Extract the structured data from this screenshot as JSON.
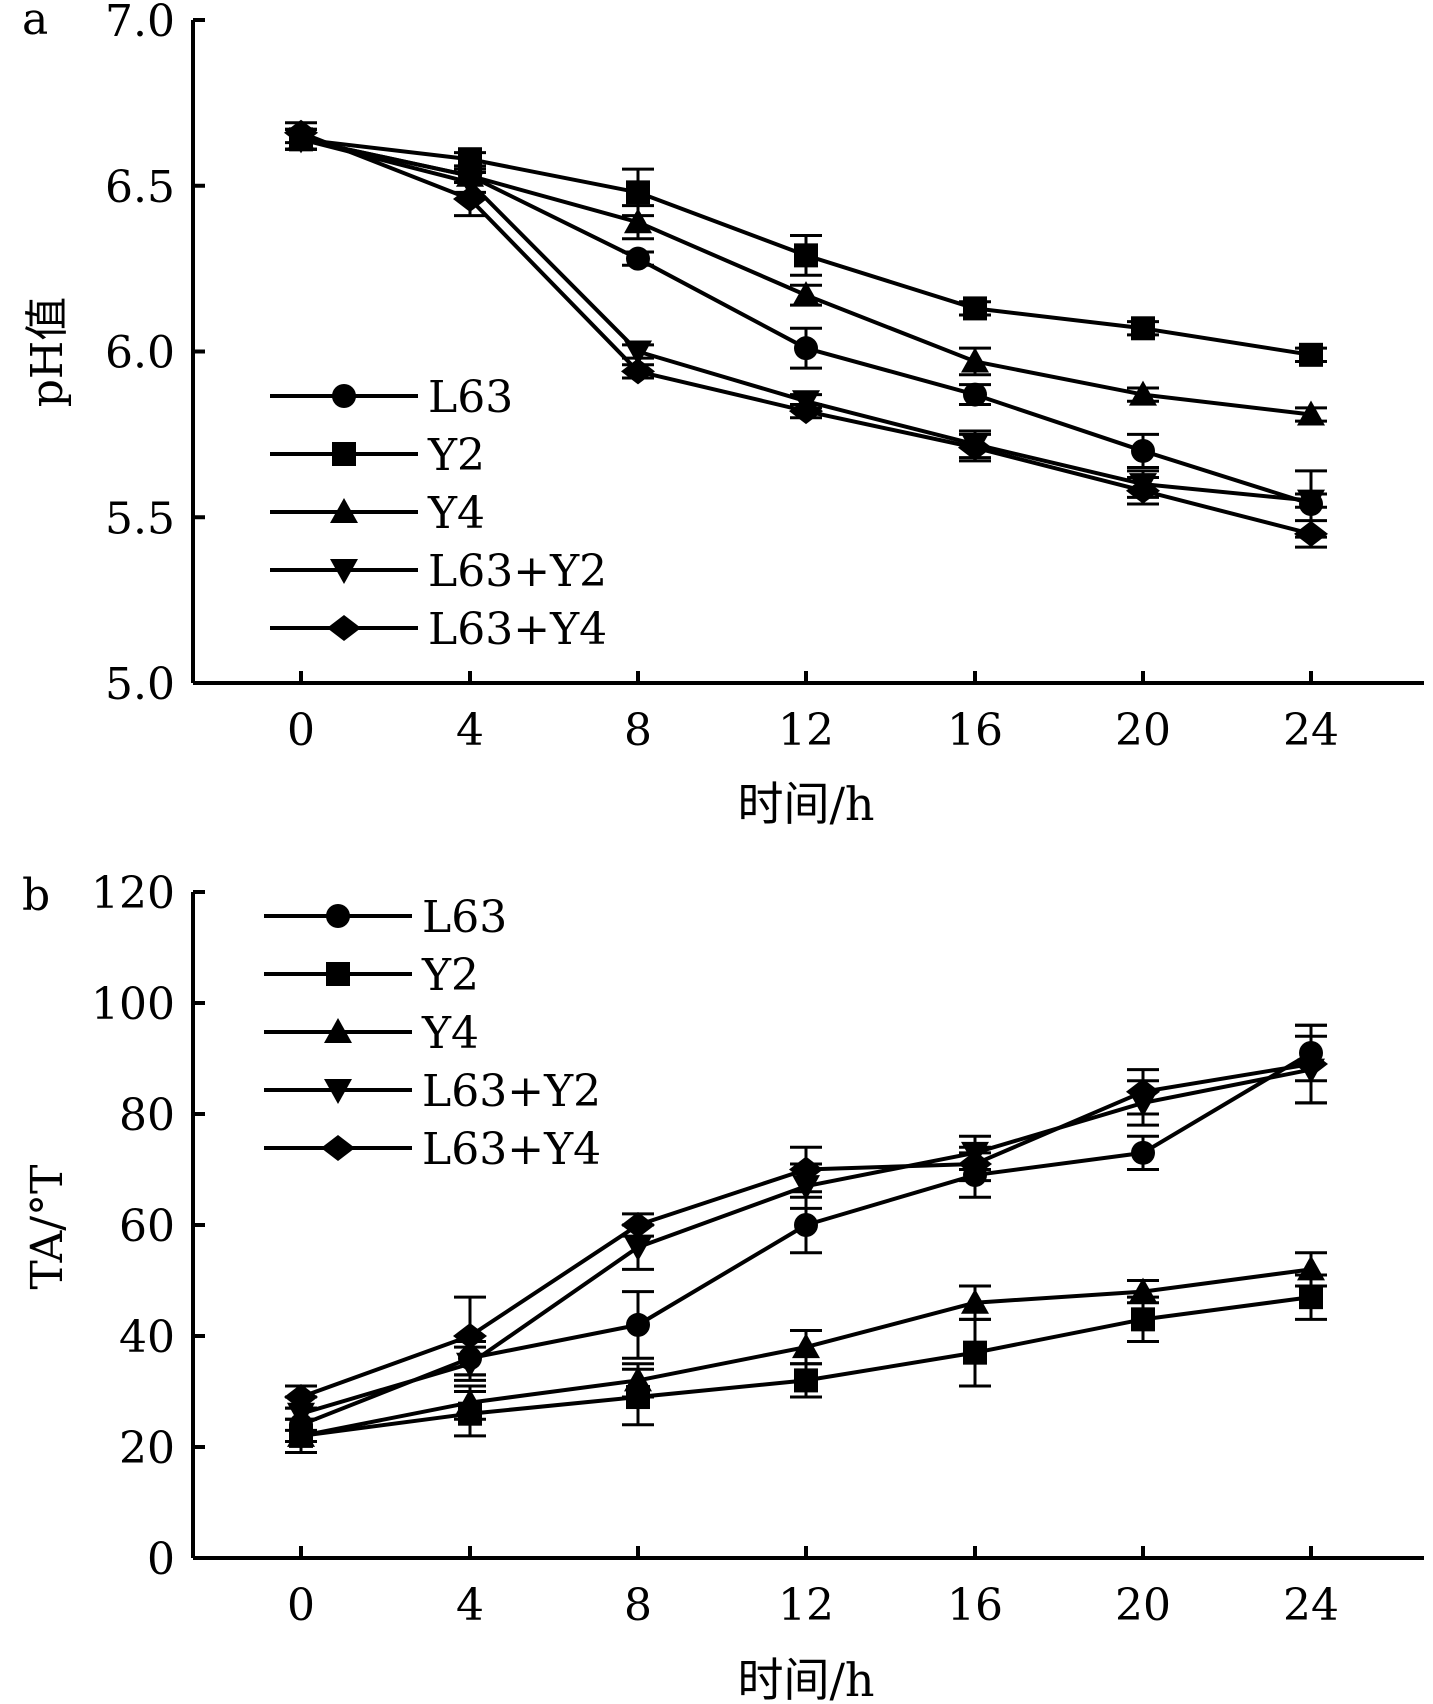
{
  "chart_data": [
    {
      "panel_label": "a",
      "type": "line",
      "xlabel": "时间/h",
      "ylabel": "pH值",
      "x": [
        0,
        4,
        8,
        12,
        16,
        20,
        24
      ],
      "xticks": [
        "0",
        "4",
        "8",
        "12",
        "16",
        "20",
        "24"
      ],
      "yticks": [
        "5.0",
        "5.5",
        "6.0",
        "6.5",
        "7.0"
      ],
      "ylim": [
        5.0,
        7.0
      ],
      "grid": false,
      "legend_position": "middle-left",
      "series": [
        {
          "name": "L63",
          "marker": "circle",
          "values": [
            6.64,
            6.53,
            6.28,
            6.01,
            5.87,
            5.7,
            5.54
          ],
          "errors": [
            0.03,
            0.02,
            0.02,
            0.06,
            0.03,
            0.05,
            0.1
          ]
        },
        {
          "name": "Y2",
          "marker": "square",
          "values": [
            6.64,
            6.58,
            6.48,
            6.29,
            6.13,
            6.07,
            5.99
          ],
          "errors": [
            0.03,
            0.02,
            0.07,
            0.06,
            0.02,
            0.02,
            0.02
          ]
        },
        {
          "name": "Y4",
          "marker": "triangle-up",
          "values": [
            6.64,
            6.53,
            6.39,
            6.17,
            5.97,
            5.87,
            5.81
          ],
          "errors": [
            0.03,
            0.02,
            0.05,
            0.03,
            0.04,
            0.02,
            0.02
          ]
        },
        {
          "name": "L63+Y2",
          "marker": "triangle-down",
          "values": [
            6.64,
            6.51,
            6.0,
            5.85,
            5.72,
            5.6,
            5.55
          ],
          "errors": [
            0.03,
            0.03,
            0.02,
            0.02,
            0.04,
            0.04,
            0.02
          ]
        },
        {
          "name": "L63+Y4",
          "marker": "diamond",
          "values": [
            6.66,
            6.46,
            5.94,
            5.82,
            5.71,
            5.58,
            5.45
          ],
          "errors": [
            0.03,
            0.05,
            0.02,
            0.02,
            0.04,
            0.04,
            0.04
          ]
        }
      ]
    },
    {
      "panel_label": "b",
      "type": "line",
      "xlabel": "时间/h",
      "ylabel": "TA/°T",
      "x": [
        0,
        4,
        8,
        12,
        16,
        20,
        24
      ],
      "xticks": [
        "0",
        "4",
        "8",
        "12",
        "16",
        "20",
        "24"
      ],
      "yticks": [
        "0",
        "20",
        "40",
        "60",
        "80",
        "100",
        "120"
      ],
      "ylim": [
        0,
        120
      ],
      "grid": false,
      "legend_position": "top-left",
      "series": [
        {
          "name": "L63",
          "marker": "circle",
          "values": [
            24,
            36,
            42,
            60,
            69,
            73,
            91
          ],
          "errors": [
            3,
            3,
            6,
            5,
            4,
            3,
            5
          ]
        },
        {
          "name": "Y2",
          "marker": "square",
          "values": [
            22,
            26,
            29,
            32,
            37,
            43,
            47
          ],
          "errors": [
            3,
            4,
            5,
            3,
            6,
            4,
            4
          ]
        },
        {
          "name": "Y4",
          "marker": "triangle-up",
          "values": [
            22,
            28,
            32,
            38,
            46,
            48,
            52
          ],
          "errors": [
            3,
            3,
            3,
            3,
            3,
            2,
            3
          ]
        },
        {
          "name": "L63+Y2",
          "marker": "triangle-down",
          "values": [
            26,
            35,
            56,
            67,
            73,
            82,
            88
          ],
          "errors": [
            3,
            3,
            4,
            4,
            3,
            4,
            6
          ]
        },
        {
          "name": "L63+Y4",
          "marker": "diamond",
          "values": [
            29,
            40,
            60,
            70,
            71,
            84,
            89
          ],
          "errors": [
            2,
            7,
            2,
            4,
            3,
            4,
            7
          ]
        }
      ]
    }
  ]
}
